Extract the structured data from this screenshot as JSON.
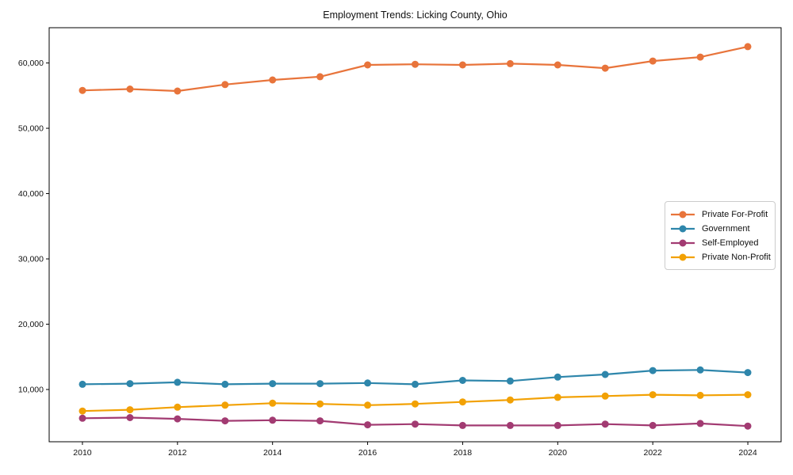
{
  "chart_data": {
    "type": "line",
    "title": "Employment Trends: Licking County, Ohio",
    "xlabel": "",
    "ylabel": "",
    "x": [
      2010,
      2011,
      2012,
      2013,
      2014,
      2015,
      2016,
      2017,
      2018,
      2019,
      2020,
      2021,
      2022,
      2023,
      2024
    ],
    "series": [
      {
        "name": "Private For-Profit",
        "color": "#E8743B",
        "values": [
          55800,
          56000,
          55700,
          56700,
          57400,
          57900,
          59700,
          59800,
          59700,
          59900,
          59700,
          59200,
          60300,
          60900,
          62500
        ]
      },
      {
        "name": "Government",
        "color": "#2E86AB",
        "values": [
          10800,
          10900,
          11100,
          10800,
          10900,
          10900,
          11000,
          10800,
          11400,
          11300,
          11900,
          12300,
          12900,
          13000,
          12600
        ]
      },
      {
        "name": "Self-Employed",
        "color": "#A23B72",
        "values": [
          5600,
          5700,
          5500,
          5200,
          5300,
          5200,
          4600,
          4700,
          4500,
          4500,
          4500,
          4700,
          4500,
          4800,
          4400
        ]
      },
      {
        "name": "Private Non-Profit",
        "color": "#F2A104",
        "values": [
          6700,
          6900,
          7300,
          7600,
          7900,
          7800,
          7600,
          7800,
          8100,
          8400,
          8800,
          9000,
          9200,
          9100,
          9200
        ]
      }
    ],
    "xlim": [
      2009.3,
      2024.7
    ],
    "ylim": [
      2000,
      65400
    ],
    "xticks": [
      2010,
      2012,
      2014,
      2016,
      2018,
      2020,
      2022,
      2024
    ],
    "yticks": [
      10000,
      20000,
      30000,
      40000,
      50000,
      60000
    ],
    "ytick_format": "comma",
    "grid": false,
    "legend_position": "center-right",
    "axis_color": "#000000",
    "marker": "circle"
  }
}
